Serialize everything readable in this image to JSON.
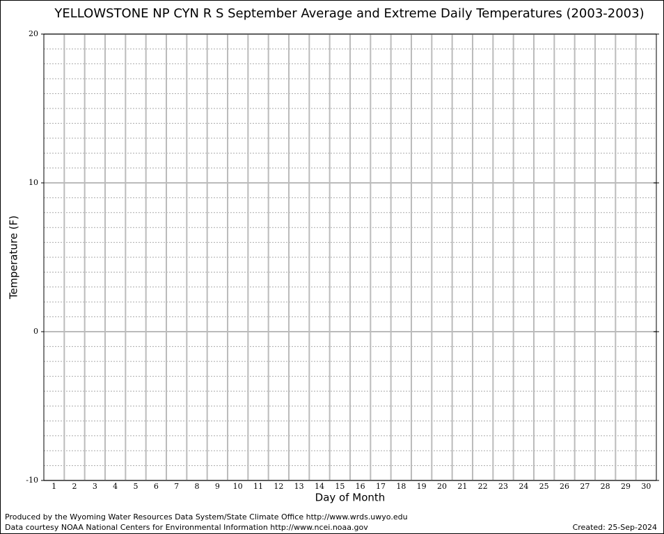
{
  "chart_data": {
    "type": "line",
    "title": "YELLOWSTONE NP CYN R S September Average and Extreme Daily Temperatures (2003-2003)",
    "x_label": "Day of Month",
    "y_label": "Temperature (F)",
    "categories": [
      "1",
      "2",
      "3",
      "4",
      "5",
      "6",
      "7",
      "8",
      "9",
      "10",
      "11",
      "12",
      "13",
      "14",
      "15",
      "16",
      "17",
      "18",
      "19",
      "20",
      "21",
      "22",
      "23",
      "24",
      "25",
      "26",
      "27",
      "28",
      "29",
      "30"
    ],
    "ylim": [
      -10,
      20
    ],
    "yticks": [
      -10,
      0,
      10,
      20
    ],
    "minor_yticks": [
      -9,
      -8,
      -7,
      -6,
      -5,
      -4,
      -3,
      -2,
      -1,
      1,
      2,
      3,
      4,
      5,
      6,
      7,
      8,
      9,
      11,
      12,
      13,
      14,
      15,
      16,
      17,
      18,
      19
    ],
    "grid": true,
    "footer": {
      "credit_1": "Produced by the Wyoming Water Resources Data System/State Climate Office http://www.wrds.uwyo.edu",
      "credit_2": "Data courtesy NOAA National Centers for Environmental Information http://www.ncei.noaa.gov",
      "created": "Created:  25-Sep-2024"
    }
  }
}
